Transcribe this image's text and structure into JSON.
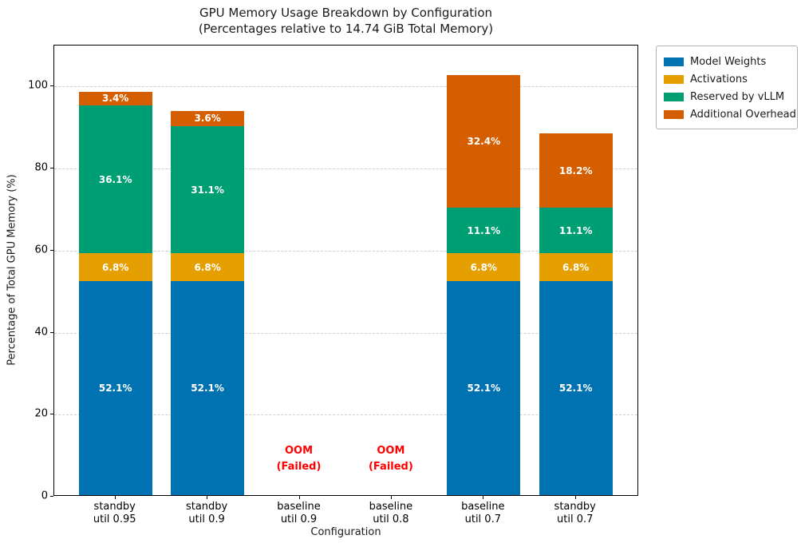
{
  "chart_data": {
    "type": "bar",
    "stacked": true,
    "title": "GPU Memory Usage Breakdown by Configuration",
    "subtitle": "(Percentages relative to 14.74 GiB Total Memory)",
    "xlabel": "Configuration",
    "ylabel": "Percentage of Total GPU Memory (%)",
    "ylim": [
      0,
      110
    ],
    "yticks": [
      0,
      20,
      40,
      60,
      80,
      100
    ],
    "grid": {
      "axis": "y",
      "style": "dashed",
      "color": "#cfcfcf"
    },
    "legend_position": "upper-right-outside",
    "categories": [
      [
        "standby",
        "util 0.95"
      ],
      [
        "standby",
        "util 0.9"
      ],
      [
        "baseline",
        "util 0.9"
      ],
      [
        "baseline",
        "util 0.8"
      ],
      [
        "baseline",
        "util 0.7"
      ],
      [
        "standby",
        "util 0.7"
      ]
    ],
    "series": [
      {
        "name": "Model Weights",
        "color": "#0072B2",
        "values": [
          52.1,
          52.1,
          0,
          0,
          52.1,
          52.1
        ]
      },
      {
        "name": "Activations",
        "color": "#E69F00",
        "values": [
          6.8,
          6.8,
          0,
          0,
          6.8,
          6.8
        ]
      },
      {
        "name": "Reserved by vLLM",
        "color": "#009E73",
        "values": [
          36.1,
          31.1,
          0,
          0,
          11.1,
          11.1
        ]
      },
      {
        "name": "Additional Overhead",
        "color": "#D55E00",
        "values": [
          3.4,
          3.6,
          0,
          0,
          32.4,
          18.2
        ]
      }
    ],
    "bar_totals": [
      98.4,
      93.6,
      0,
      0,
      102.4,
      88.2
    ],
    "value_label_suffix": "%",
    "annotations": [
      {
        "lines": [
          "OOM",
          "(Failed)"
        ],
        "category_index": 2,
        "y_pct": 9,
        "color": "#ff0000"
      },
      {
        "lines": [
          "OOM",
          "(Failed)"
        ],
        "category_index": 3,
        "y_pct": 9,
        "color": "#ff0000"
      }
    ]
  }
}
